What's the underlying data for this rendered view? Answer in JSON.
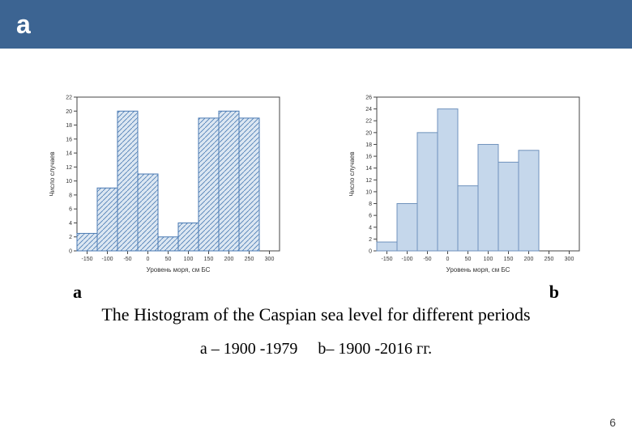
{
  "header": {
    "letter": "a"
  },
  "labels": {
    "a": "a",
    "b": "b"
  },
  "caption": "The Histogram of the Caspian sea level for different periods",
  "ab_legend_a": "a – 1900 -1979",
  "ab_legend_b": "b– 1900 -2016 гг.",
  "page_number": "6",
  "chart_a": {
    "type": "histogram",
    "categories": [
      "-150",
      "-100",
      "-50",
      "0",
      "50",
      "100",
      "150",
      "200",
      "250",
      "300"
    ],
    "values": [
      2.5,
      9,
      20,
      11,
      2,
      4,
      19,
      20,
      19,
      0
    ],
    "bar_fill": "#dce7f2",
    "bar_stroke": "#4a7ab3",
    "hatch": true,
    "hatch_color": "#4a7ab3",
    "xlabel": "Уровень моря, см БС",
    "ylabel": "Число случаев",
    "ylim": [
      0,
      22
    ],
    "ytick_step": 2,
    "grid_color": "#444444",
    "background_color": "#ffffff",
    "title_fontsize": 8,
    "tick_fontsize": 7
  },
  "chart_b": {
    "type": "histogram",
    "categories": [
      "-150",
      "-100",
      "-50",
      "0",
      "50",
      "100",
      "150",
      "200",
      "250",
      "300"
    ],
    "values": [
      1.5,
      8,
      20,
      24,
      11,
      18,
      15,
      17,
      0,
      0
    ],
    "bar_fill": "#c5d7eb",
    "bar_stroke": "#6f92bc",
    "hatch": false,
    "xlabel": "Уровень моря, см БС",
    "ylabel": "Число случаев",
    "ylim": [
      0,
      26
    ],
    "ytick_step": 2,
    "grid_color": "#444444",
    "background_color": "#ffffff",
    "title_fontsize": 8,
    "tick_fontsize": 7
  }
}
